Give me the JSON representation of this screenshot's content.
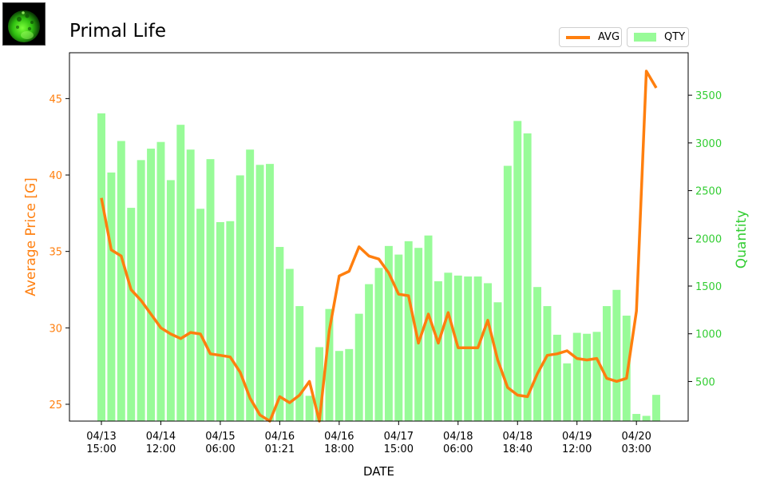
{
  "title": "Primal Life",
  "colors": {
    "avg": "#ff7f0e",
    "qty": "#98fb98",
    "qty_axis": "#32cd32"
  },
  "chart_data": {
    "type": "bar+line",
    "title": "Primal Life",
    "xlabel": "DATE",
    "ylabel_left": "Average Price [G]",
    "ylabel_right": "Quantity",
    "x_tick_labels": [
      {
        "index": 0,
        "line1": "04/13",
        "line2": "15:00"
      },
      {
        "index": 6,
        "line1": "04/14",
        "line2": "12:00"
      },
      {
        "index": 12,
        "line1": "04/15",
        "line2": "06:00"
      },
      {
        "index": 18,
        "line1": "04/16",
        "line2": "01:21"
      },
      {
        "index": 24,
        "line1": "04/16",
        "line2": "18:00"
      },
      {
        "index": 30,
        "line1": "04/17",
        "line2": "15:00"
      },
      {
        "index": 36,
        "line1": "04/18",
        "line2": "06:00"
      },
      {
        "index": 42,
        "line1": "04/18",
        "line2": "18:40"
      },
      {
        "index": 48,
        "line1": "04/19",
        "line2": "12:00"
      },
      {
        "index": 54,
        "line1": "04/20",
        "line2": "03:00"
      }
    ],
    "left_yticks": [
      25,
      30,
      35,
      40,
      45
    ],
    "right_yticks": [
      500,
      1000,
      1500,
      2000,
      2500,
      3000,
      3500
    ],
    "ylim_left": [
      23.9,
      48.0
    ],
    "ylim_right": [
      85,
      3945
    ],
    "legend": [
      {
        "name": "AVG",
        "marker": "line"
      },
      {
        "name": "QTY",
        "marker": "bar"
      }
    ],
    "legend_position": "top-right",
    "series": [
      {
        "name": "QTY",
        "kind": "bar",
        "axis": "right",
        "values": [
          3310,
          2690,
          3020,
          2320,
          2820,
          2940,
          3010,
          2610,
          3190,
          2930,
          2310,
          2830,
          2170,
          2180,
          2660,
          2930,
          2770,
          2780,
          1910,
          1680,
          1290,
          350,
          860,
          1260,
          820,
          840,
          1210,
          1520,
          1690,
          1920,
          1830,
          1970,
          1900,
          2030,
          1550,
          1640,
          1610,
          1600,
          1600,
          1530,
          1330,
          2760,
          3230,
          3100,
          1490,
          1290,
          990,
          690,
          1010,
          1000,
          1020,
          1290,
          1460,
          1190,
          160,
          140,
          360
        ]
      },
      {
        "name": "AVG",
        "kind": "line",
        "axis": "left",
        "values": [
          38.5,
          35.1,
          34.7,
          32.5,
          31.8,
          30.9,
          30.0,
          29.6,
          29.3,
          29.7,
          29.6,
          28.3,
          28.2,
          28.1,
          27.1,
          25.4,
          24.3,
          23.9,
          25.5,
          25.1,
          25.6,
          26.5,
          23.9,
          29.8,
          33.4,
          33.7,
          35.3,
          34.7,
          34.5,
          33.6,
          32.2,
          32.1,
          29.0,
          30.9,
          29.0,
          31.0,
          28.7,
          28.7,
          28.7,
          30.5,
          27.9,
          26.1,
          25.6,
          25.5,
          27.0,
          28.2,
          28.3,
          28.5,
          28.0,
          27.9,
          28.0,
          26.7,
          26.5,
          26.7,
          31.1,
          46.8,
          45.7
        ]
      }
    ]
  }
}
